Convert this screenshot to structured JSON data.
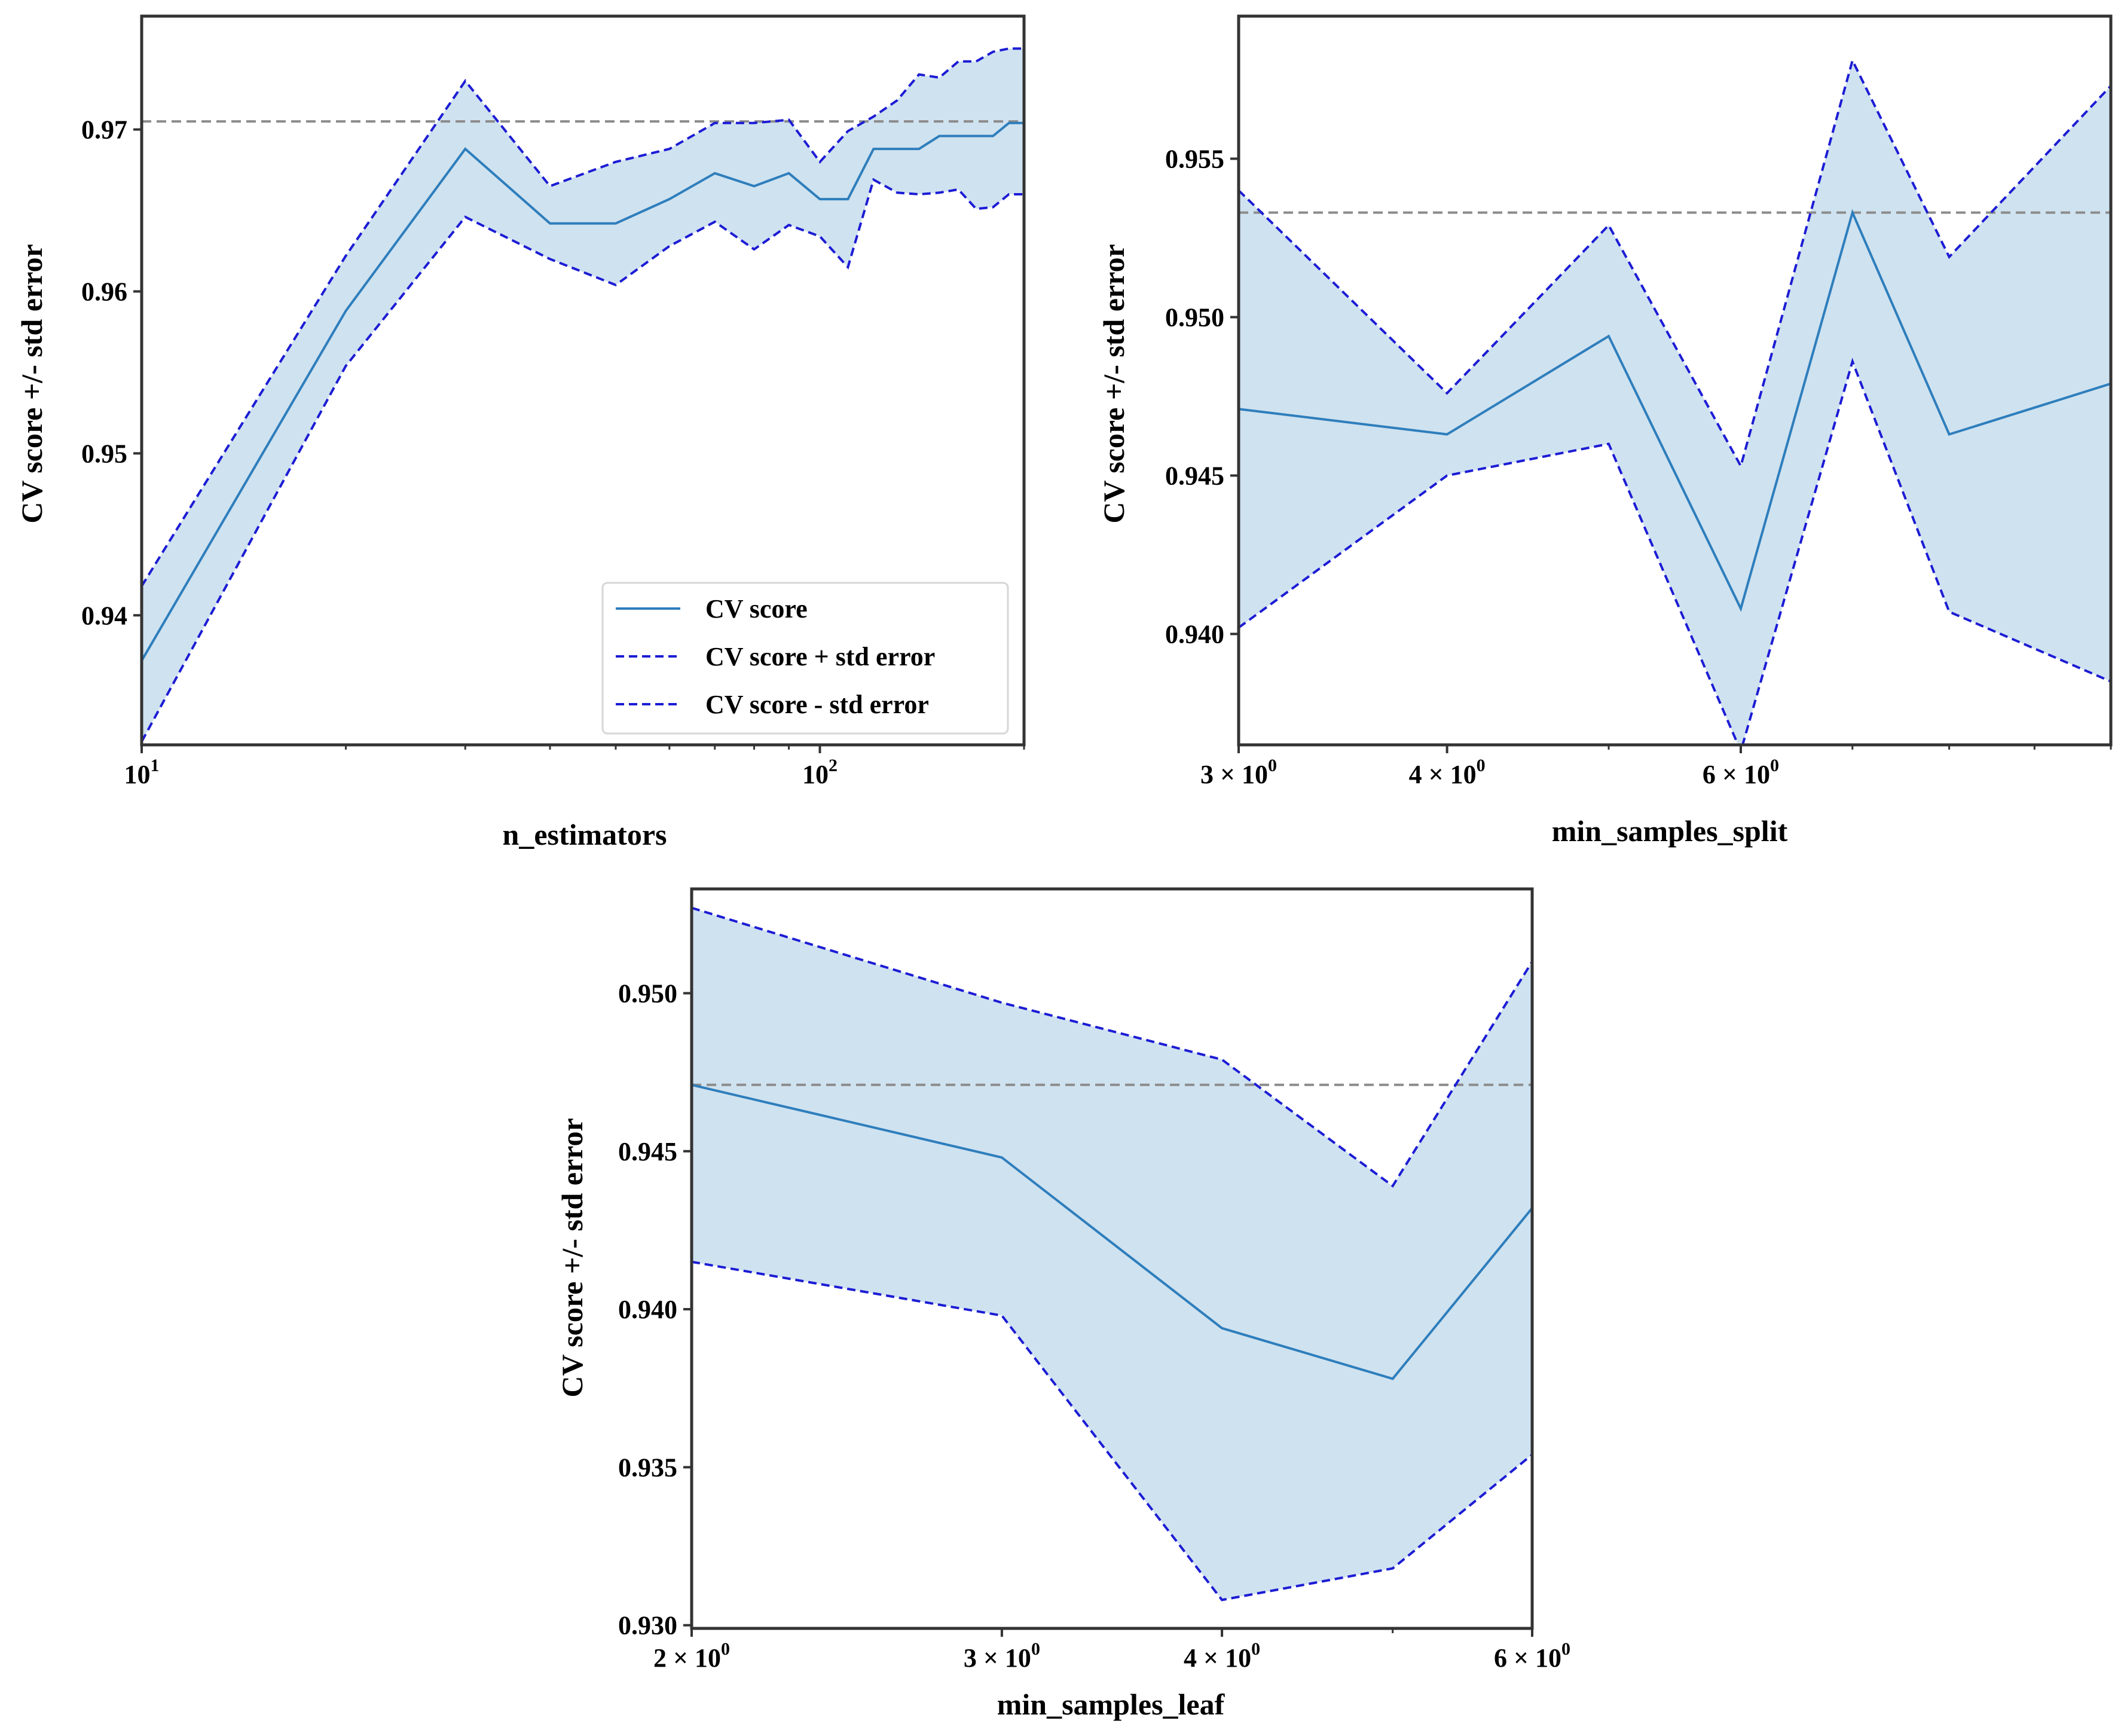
{
  "colors": {
    "cv_line": "#2e7ebc",
    "std_line": "#1c1cd4",
    "fill": "#cfe2f0",
    "ref_line": "#8c8c8c",
    "axes": "#333333"
  },
  "chart_data": [
    {
      "id": "n_estimators",
      "type": "line",
      "xscale": "log",
      "xlabel": "n_estimators",
      "ylabel": "CV score +/- std error",
      "xlim": [
        10,
        200
      ],
      "ylim": [
        0.932,
        0.977
      ],
      "xticks": [
        {
          "value": 10,
          "base": "10",
          "exp": "1"
        },
        {
          "value": 100,
          "base": "10",
          "exp": "2"
        }
      ],
      "yticks": [
        {
          "value": 0.94,
          "label": "0.94"
        },
        {
          "value": 0.95,
          "label": "0.95"
        },
        {
          "value": 0.96,
          "label": "0.96"
        },
        {
          "value": 0.97,
          "label": "0.97"
        }
      ],
      "hline": 0.9705,
      "legend": {
        "location": "lower right",
        "entries": [
          "CV score",
          "CV score + std error",
          "CV score - std error"
        ]
      },
      "x": [
        10,
        20,
        30,
        40,
        50,
        60,
        70,
        80,
        90,
        100,
        110,
        120,
        130,
        140,
        150,
        160,
        170,
        180,
        190,
        200
      ],
      "cv": [
        0.9372,
        0.9588,
        0.9688,
        0.9642,
        0.9642,
        0.9657,
        0.9673,
        0.9665,
        0.9673,
        0.9657,
        0.9657,
        0.9688,
        0.9688,
        0.9688,
        0.9696,
        0.9696,
        0.9696,
        0.9696,
        0.9704,
        0.9704
      ],
      "upper": [
        0.9418,
        0.9622,
        0.973,
        0.9665,
        0.968,
        0.9688,
        0.9704,
        0.9704,
        0.9706,
        0.968,
        0.9699,
        0.9708,
        0.9718,
        0.9734,
        0.9732,
        0.9742,
        0.9742,
        0.9748,
        0.975,
        0.975
      ],
      "lower": [
        0.9322,
        0.9554,
        0.9646,
        0.962,
        0.9604,
        0.9628,
        0.9643,
        0.9626,
        0.9641,
        0.9634,
        0.9615,
        0.9669,
        0.9661,
        0.966,
        0.9661,
        0.9663,
        0.9651,
        0.9652,
        0.966,
        0.966
      ]
    },
    {
      "id": "min_samples_split",
      "type": "line",
      "xscale": "log",
      "xlabel": "min_samples_split",
      "ylabel": "CV score +/- std error",
      "xlim": [
        3,
        10
      ],
      "ylim": [
        0.9365,
        0.9595
      ],
      "xticks": [
        {
          "value": 3,
          "base": "3 × 10",
          "exp": "0"
        },
        {
          "value": 4,
          "base": "4 × 10",
          "exp": "0"
        },
        {
          "value": 6,
          "base": "6 × 10",
          "exp": "0"
        }
      ],
      "yticks": [
        {
          "value": 0.94,
          "label": "0.940"
        },
        {
          "value": 0.945,
          "label": "0.945"
        },
        {
          "value": 0.95,
          "label": "0.950"
        },
        {
          "value": 0.955,
          "label": "0.955"
        }
      ],
      "hline": 0.9533,
      "x": [
        3,
        4,
        5,
        6,
        7,
        8,
        10
      ],
      "cv": [
        0.9471,
        0.9463,
        0.9494,
        0.9408,
        0.9533,
        0.9463,
        0.9479
      ],
      "upper": [
        0.954,
        0.9476,
        0.9529,
        0.9453,
        0.9581,
        0.9519,
        0.9573
      ],
      "lower": [
        0.9402,
        0.945,
        0.946,
        0.9363,
        0.9486,
        0.9407,
        0.9385
      ]
    },
    {
      "id": "min_samples_leaf",
      "type": "line",
      "xscale": "log",
      "xlabel": "min_samples_leaf",
      "ylabel": "CV score +/- std error",
      "xlim": [
        2,
        6
      ],
      "ylim": [
        0.9299,
        0.9533
      ],
      "xticks": [
        {
          "value": 2,
          "base": "2 × 10",
          "exp": "0"
        },
        {
          "value": 3,
          "base": "3 × 10",
          "exp": "0"
        },
        {
          "value": 4,
          "base": "4 × 10",
          "exp": "0"
        },
        {
          "value": 6,
          "base": "6 × 10",
          "exp": "0"
        }
      ],
      "yticks": [
        {
          "value": 0.93,
          "label": "0.930"
        },
        {
          "value": 0.935,
          "label": "0.935"
        },
        {
          "value": 0.94,
          "label": "0.940"
        },
        {
          "value": 0.945,
          "label": "0.945"
        },
        {
          "value": 0.95,
          "label": "0.950"
        }
      ],
      "hline": 0.9471,
      "x": [
        2,
        3,
        4,
        5,
        6
      ],
      "cv": [
        0.9471,
        0.9448,
        0.9394,
        0.9378,
        0.9432
      ],
      "upper": [
        0.9527,
        0.9497,
        0.9479,
        0.9439,
        0.951
      ],
      "lower": [
        0.9415,
        0.9398,
        0.9308,
        0.9318,
        0.9354
      ]
    }
  ]
}
